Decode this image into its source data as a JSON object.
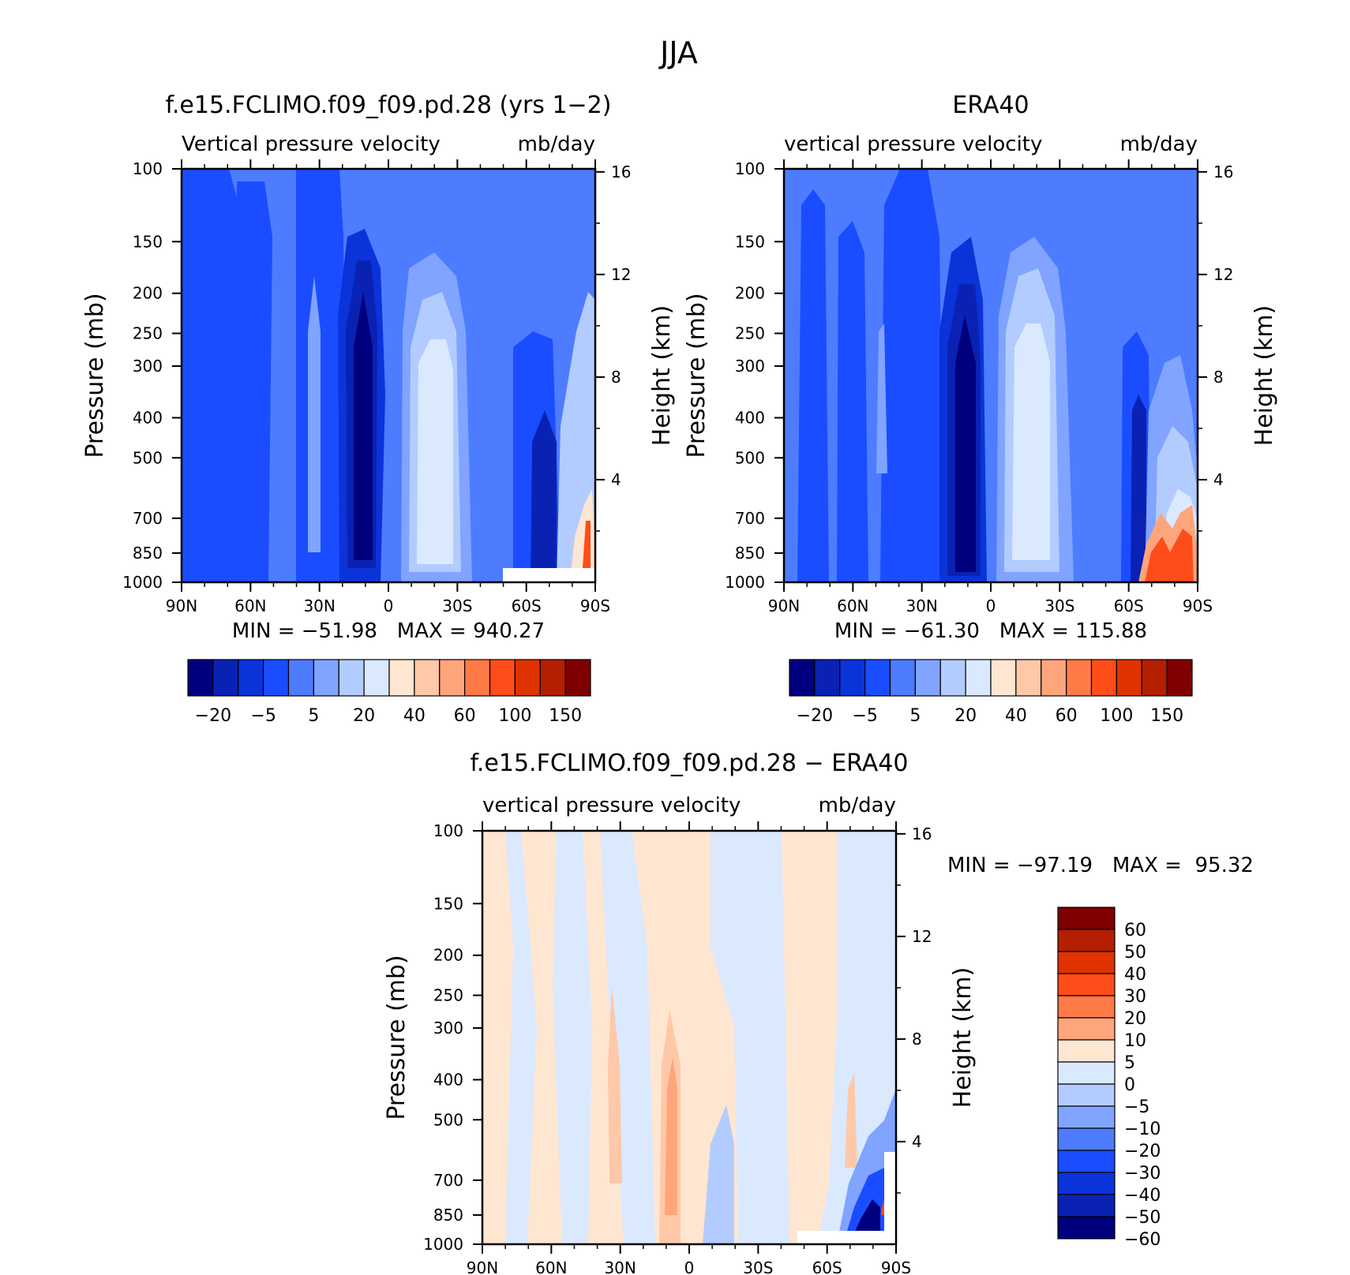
{
  "figure": {
    "title": "JJA"
  },
  "chart_data": [
    {
      "type": "heatmap",
      "title": "f.e15.FCLIMO.f09_f09.pd.28 (yrs 1−2)",
      "subtitle_left": "Vertical pressure velocity",
      "subtitle_right": "mb/day",
      "xlabel": "",
      "ylabel": "Pressure (mb)",
      "y2label": "Height (km)",
      "x_ticks": [
        "90N",
        "60N",
        "30N",
        "0",
        "30S",
        "60S",
        "90S"
      ],
      "y_ticks": [
        100,
        150,
        200,
        250,
        300,
        400,
        500,
        700,
        850,
        1000
      ],
      "y2_ticks": [
        4,
        8,
        12,
        16
      ],
      "ylim": [
        1000,
        100
      ],
      "y_scale": "log",
      "stats": "MIN = −51.98   MAX = 940.27",
      "colorbar": {
        "orientation": "horizontal",
        "labels": [
          "−20",
          "−5",
          "5",
          "20",
          "40",
          "60",
          "100",
          "150"
        ]
      }
    },
    {
      "type": "heatmap",
      "title": "ERA40",
      "subtitle_left": "vertical pressure velocity",
      "subtitle_right": "mb/day",
      "xlabel": "",
      "ylabel": "Pressure (mb)",
      "y2label": "Height (km)",
      "x_ticks": [
        "90N",
        "60N",
        "30N",
        "0",
        "30S",
        "60S",
        "90S"
      ],
      "y_ticks": [
        100,
        150,
        200,
        250,
        300,
        400,
        500,
        700,
        850,
        1000
      ],
      "y2_ticks": [
        4,
        8,
        12,
        16
      ],
      "ylim": [
        1000,
        100
      ],
      "y_scale": "log",
      "stats": "MIN = −61.30   MAX = 115.88",
      "colorbar": {
        "orientation": "horizontal",
        "labels": [
          "−20",
          "−5",
          "5",
          "20",
          "40",
          "60",
          "100",
          "150"
        ]
      }
    },
    {
      "type": "heatmap",
      "title": "f.e15.FCLIMO.f09_f09.pd.28 − ERA40",
      "subtitle_left": "vertical pressure velocity",
      "subtitle_right": "mb/day",
      "xlabel": "",
      "ylabel": "Pressure (mb)",
      "y2label": "Height (km)",
      "x_ticks": [
        "90N",
        "60N",
        "30N",
        "0",
        "30S",
        "60S",
        "90S"
      ],
      "y_ticks": [
        100,
        150,
        200,
        250,
        300,
        400,
        500,
        700,
        850,
        1000
      ],
      "y2_ticks": [
        4,
        8,
        12,
        16
      ],
      "ylim": [
        1000,
        100
      ],
      "y_scale": "log",
      "stats": "MIN = −97.19   MAX =  95.32",
      "colorbar": {
        "orientation": "vertical",
        "labels": [
          "60",
          "50",
          "40",
          "30",
          "20",
          "10",
          "5",
          "0",
          "−5",
          "−10",
          "−20",
          "−30",
          "−40",
          "−50",
          "−60"
        ]
      }
    }
  ],
  "palette": {
    "abs": [
      "#00007f",
      "#0a22b3",
      "#0a33d9",
      "#1a4dff",
      "#4d7cff",
      "#80a4ff",
      "#b3ccff",
      "#dbe9ff",
      "#ffe6d1",
      "#ffc8a8",
      "#ffa57c",
      "#ff7a47",
      "#ff4d1a",
      "#e03300",
      "#b31f00",
      "#7f0000"
    ],
    "diff": [
      "#7f0000",
      "#b31f00",
      "#e03300",
      "#ff4d1a",
      "#ff7a47",
      "#ffa57c",
      "#ffe6d1",
      "#dbe9ff",
      "#b3ccff",
      "#80a4ff",
      "#4d7cff",
      "#1a4dff",
      "#0a33d9",
      "#0a22b3",
      "#00007f"
    ]
  }
}
